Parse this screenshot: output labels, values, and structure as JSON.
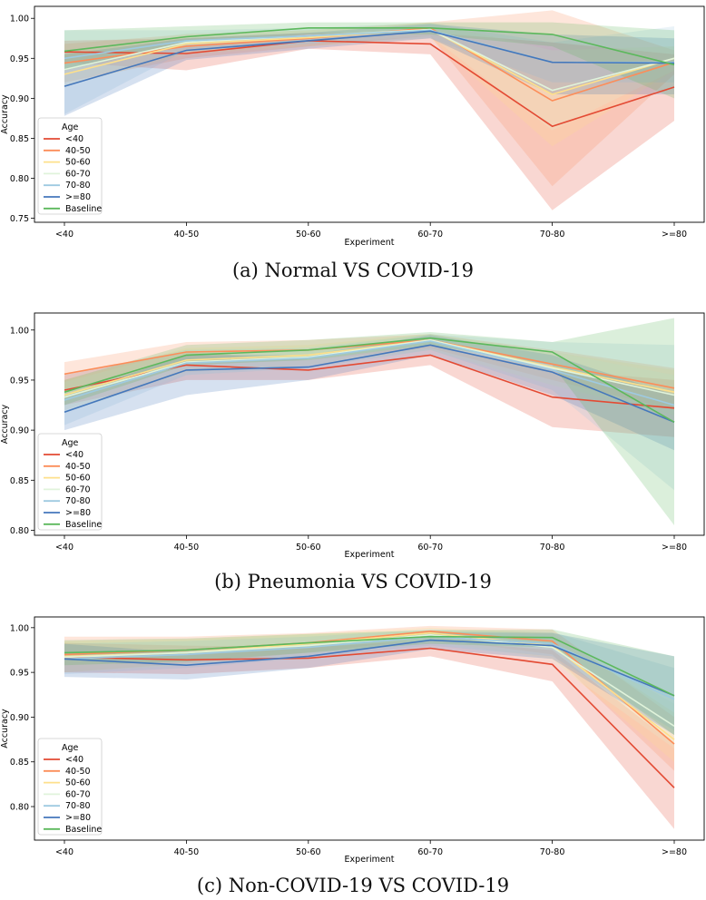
{
  "charts": [
    {
      "type": "line",
      "title": "",
      "caption": "(a) Normal VS COVID-19",
      "xlabel": "Experiment",
      "ylabel": "Accuracy",
      "categories": [
        "<40",
        "40-50",
        "50-60",
        "60-70",
        "70-80",
        ">=80"
      ],
      "ylim": [
        0.745,
        1.015
      ],
      "yticks": [
        0.75,
        0.8,
        0.85,
        0.9,
        0.95,
        1.0
      ],
      "ytick_labels": [
        "0.75",
        "0.80",
        "0.85",
        "0.90",
        "0.95",
        "1.00"
      ],
      "legend": {
        "title": "Age",
        "placement": "lower-left"
      },
      "series": [
        {
          "name": "<40",
          "color": "#e34a33",
          "values": [
            0.958,
            0.956,
            0.972,
            0.968,
            0.865,
            0.914
          ],
          "lower": [
            0.945,
            0.935,
            0.962,
            0.955,
            0.76,
            0.872
          ],
          "upper": [
            0.972,
            0.975,
            0.982,
            0.982,
            0.97,
            0.955
          ]
        },
        {
          "name": "40-50",
          "color": "#fc8d59",
          "values": [
            0.944,
            0.965,
            0.975,
            0.988,
            0.897,
            0.945
          ],
          "lower": [
            0.92,
            0.95,
            0.965,
            0.978,
            0.79,
            0.93
          ],
          "upper": [
            0.968,
            0.98,
            0.985,
            0.995,
            1.01,
            0.96
          ]
        },
        {
          "name": "50-60",
          "color": "#fee08b",
          "values": [
            0.93,
            0.968,
            0.976,
            0.986,
            0.905,
            0.95
          ],
          "lower": [
            0.915,
            0.955,
            0.965,
            0.975,
            0.84,
            0.935
          ],
          "upper": [
            0.955,
            0.98,
            0.985,
            0.995,
            0.96,
            0.965
          ]
        },
        {
          "name": "60-70",
          "color": "#e0f3db",
          "values": [
            0.936,
            0.97,
            0.978,
            0.986,
            0.91,
            0.95
          ],
          "lower": [
            0.92,
            0.958,
            0.968,
            0.978,
            0.86,
            0.935
          ],
          "upper": [
            0.955,
            0.982,
            0.988,
            0.994,
            0.96,
            0.965
          ]
        },
        {
          "name": "70-80",
          "color": "#9ecae1",
          "values": [
            0.95,
            0.972,
            0.978,
            0.985,
            0.945,
            0.945
          ],
          "lower": [
            0.88,
            0.96,
            0.968,
            0.975,
            0.92,
            0.92
          ],
          "upper": [
            0.985,
            0.985,
            0.988,
            0.994,
            0.97,
            0.99
          ]
        },
        {
          "name": ">=80",
          "color": "#4477bb",
          "values": [
            0.915,
            0.96,
            0.972,
            0.984,
            0.945,
            0.944
          ],
          "lower": [
            0.878,
            0.948,
            0.962,
            0.975,
            0.905,
            0.905
          ],
          "upper": [
            0.955,
            0.975,
            0.982,
            0.993,
            0.98,
            0.975
          ]
        },
        {
          "name": "Baseline",
          "color": "#5cb85c",
          "values": [
            0.959,
            0.977,
            0.988,
            0.988,
            0.98,
            0.942
          ],
          "lower": [
            0.935,
            0.968,
            0.98,
            0.98,
            0.965,
            0.9
          ],
          "upper": [
            0.985,
            0.99,
            0.995,
            0.995,
            0.995,
            0.985
          ]
        }
      ]
    },
    {
      "type": "line",
      "title": "",
      "caption": "(b) Pneumonia VS COVID-19",
      "xlabel": "Experiment",
      "ylabel": "Accuracy",
      "categories": [
        "<40",
        "40-50",
        "50-60",
        "60-70",
        "70-80",
        ">=80"
      ],
      "ylim": [
        0.795,
        1.017
      ],
      "yticks": [
        0.8,
        0.85,
        0.9,
        0.95,
        1.0
      ],
      "ytick_labels": [
        "0.80",
        "0.85",
        "0.90",
        "0.95",
        "1.00"
      ],
      "legend": {
        "title": "Age",
        "placement": "lower-left"
      },
      "series": [
        {
          "name": "<40",
          "color": "#e34a33",
          "values": [
            0.94,
            0.965,
            0.96,
            0.975,
            0.933,
            0.922
          ],
          "lower": [
            0.925,
            0.95,
            0.95,
            0.965,
            0.903,
            0.893
          ],
          "upper": [
            0.955,
            0.978,
            0.97,
            0.985,
            0.96,
            0.95
          ]
        },
        {
          "name": "40-50",
          "color": "#fc8d59",
          "values": [
            0.956,
            0.978,
            0.98,
            0.99,
            0.966,
            0.942
          ],
          "lower": [
            0.94,
            0.968,
            0.97,
            0.982,
            0.95,
            0.92
          ],
          "upper": [
            0.968,
            0.988,
            0.99,
            0.996,
            0.98,
            0.962
          ]
        },
        {
          "name": "50-60",
          "color": "#fee08b",
          "values": [
            0.935,
            0.97,
            0.975,
            0.99,
            0.963,
            0.938
          ],
          "lower": [
            0.92,
            0.958,
            0.965,
            0.98,
            0.945,
            0.915
          ],
          "upper": [
            0.95,
            0.982,
            0.985,
            0.996,
            0.978,
            0.96
          ]
        },
        {
          "name": "60-70",
          "color": "#e0f3db",
          "values": [
            0.933,
            0.968,
            0.973,
            0.99,
            0.962,
            0.935
          ],
          "lower": [
            0.918,
            0.955,
            0.963,
            0.98,
            0.945,
            0.915
          ],
          "upper": [
            0.948,
            0.98,
            0.983,
            0.996,
            0.978,
            0.955
          ]
        },
        {
          "name": "70-80",
          "color": "#9ecae1",
          "values": [
            0.93,
            0.967,
            0.972,
            0.989,
            0.96,
            0.925
          ],
          "lower": [
            0.905,
            0.955,
            0.962,
            0.98,
            0.94,
            0.84
          ],
          "upper": [
            0.955,
            0.98,
            0.982,
            0.996,
            0.988,
            0.985
          ]
        },
        {
          "name": ">=80",
          "color": "#4477bb",
          "values": [
            0.918,
            0.96,
            0.963,
            0.985,
            0.958,
            0.908
          ],
          "lower": [
            0.9,
            0.935,
            0.95,
            0.975,
            0.935,
            0.88
          ],
          "upper": [
            0.935,
            0.975,
            0.975,
            0.995,
            0.975,
            0.935
          ]
        },
        {
          "name": "Baseline",
          "color": "#5cb85c",
          "values": [
            0.938,
            0.975,
            0.98,
            0.992,
            0.978,
            0.908
          ],
          "lower": [
            0.925,
            0.965,
            0.97,
            0.985,
            0.965,
            0.805
          ],
          "upper": [
            0.95,
            0.985,
            0.99,
            0.998,
            0.988,
            1.012
          ]
        }
      ]
    },
    {
      "type": "line",
      "title": "",
      "caption": "(c) Non-COVID-19 VS COVID-19",
      "xlabel": "Experiment",
      "ylabel": "Accuracy",
      "categories": [
        "<40",
        "40-50",
        "50-60",
        "60-70",
        "70-80",
        ">=80"
      ],
      "ylim": [
        0.7625,
        1.012
      ],
      "yticks": [
        0.8,
        0.85,
        0.9,
        0.95,
        1.0
      ],
      "ytick_labels": [
        "0.80",
        "0.85",
        "0.90",
        "0.95",
        "1.00"
      ],
      "legend": {
        "title": "Age",
        "placement": "lower-left"
      },
      "series": [
        {
          "name": "<40",
          "color": "#e34a33",
          "values": [
            0.967,
            0.964,
            0.966,
            0.977,
            0.959,
            0.821
          ],
          "lower": [
            0.95,
            0.948,
            0.955,
            0.968,
            0.94,
            0.775
          ],
          "upper": [
            0.983,
            0.98,
            0.978,
            0.986,
            0.975,
            0.87
          ]
        },
        {
          "name": "40-50",
          "color": "#fc8d59",
          "values": [
            0.97,
            0.975,
            0.983,
            0.996,
            0.985,
            0.87
          ],
          "lower": [
            0.95,
            0.96,
            0.972,
            0.988,
            0.97,
            0.84
          ],
          "upper": [
            0.99,
            0.99,
            0.994,
            1.002,
            0.998,
            0.9
          ]
        },
        {
          "name": "50-60",
          "color": "#fee08b",
          "values": [
            0.968,
            0.972,
            0.982,
            0.994,
            0.98,
            0.875
          ],
          "lower": [
            0.95,
            0.958,
            0.97,
            0.985,
            0.965,
            0.85
          ],
          "upper": [
            0.985,
            0.987,
            0.993,
            1.0,
            0.994,
            0.905
          ]
        },
        {
          "name": "60-70",
          "color": "#e0f3db",
          "values": [
            0.967,
            0.972,
            0.98,
            0.992,
            0.978,
            0.89
          ],
          "lower": [
            0.95,
            0.958,
            0.968,
            0.983,
            0.962,
            0.865
          ],
          "upper": [
            0.983,
            0.986,
            0.992,
            0.999,
            0.992,
            0.915
          ]
        },
        {
          "name": "70-80",
          "color": "#9ecae1",
          "values": [
            0.965,
            0.97,
            0.978,
            0.99,
            0.982,
            0.92
          ],
          "lower": [
            0.948,
            0.955,
            0.966,
            0.98,
            0.968,
            0.885
          ],
          "upper": [
            0.982,
            0.985,
            0.99,
            0.998,
            0.995,
            0.955
          ]
        },
        {
          "name": ">=80",
          "color": "#4477bb",
          "values": [
            0.965,
            0.958,
            0.968,
            0.986,
            0.98,
            0.924
          ],
          "lower": [
            0.945,
            0.942,
            0.955,
            0.976,
            0.965,
            0.88
          ],
          "upper": [
            0.982,
            0.972,
            0.98,
            0.995,
            0.994,
            0.968
          ]
        },
        {
          "name": "Baseline",
          "color": "#5cb85c",
          "values": [
            0.972,
            0.975,
            0.983,
            0.99,
            0.989,
            0.924
          ],
          "lower": [
            0.958,
            0.962,
            0.972,
            0.982,
            0.978,
            0.88
          ],
          "upper": [
            0.986,
            0.988,
            0.993,
            0.997,
            0.998,
            0.968
          ]
        }
      ]
    }
  ]
}
